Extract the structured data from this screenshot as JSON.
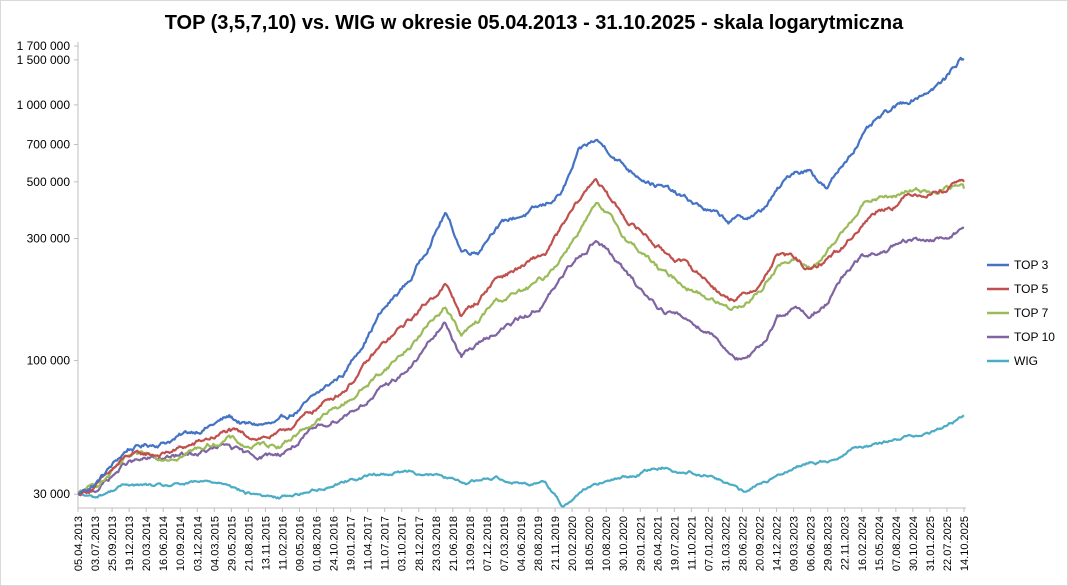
{
  "chart_data": {
    "type": "line",
    "title": "TOP (3,5,7,10) vs. WIG w okresie 05.04.2013 - 31.10.2025 - skala logarytmiczna",
    "xlabel": "",
    "ylabel": "",
    "y_scale": "log",
    "ylim": [
      26500,
      1700000
    ],
    "grid": false,
    "legend_position": "right",
    "y_ticks": [
      {
        "value": 30000,
        "label": "30 000"
      },
      {
        "value": 100000,
        "label": "100 000"
      },
      {
        "value": 300000,
        "label": "300 000"
      },
      {
        "value": 500000,
        "label": "500 000"
      },
      {
        "value": 700000,
        "label": "700 000"
      },
      {
        "value": 1000000,
        "label": "1 000 000"
      },
      {
        "value": 1500000,
        "label": "1 500 000"
      },
      {
        "value": 1700000,
        "label": "1 700 000"
      }
    ],
    "x_tick_labels": [
      "05.04.2013",
      "03.07.2013",
      "25.09.2013",
      "19.12.2013",
      "20.03.2014",
      "16.06.2014",
      "10.09.2014",
      "03.12.2014",
      "04.03.2015",
      "29.05.2015",
      "21.08.2015",
      "13.11.2015",
      "11.02.2016",
      "09.05.2016",
      "01.08.2016",
      "24.10.2016",
      "19.01.2017",
      "11.04.2017",
      "11.07.2017",
      "03.10.2017",
      "28.12.2017",
      "23.03.2018",
      "21.06.2018",
      "13.09.2018",
      "07.12.2018",
      "07.03.2019",
      "04.06.2019",
      "28.08.2019",
      "21.11.2019",
      "20.02.2020",
      "18.05.2020",
      "10.08.2020",
      "30.10.2020",
      "29.01.2021",
      "26.04.2021",
      "19.07.2021",
      "11.10.2021",
      "07.01.2022",
      "31.03.2022",
      "28.06.2022",
      "20.09.2022",
      "14.12.2022",
      "09.03.2023",
      "06.06.2023",
      "29.08.2023",
      "22.11.2023",
      "16.02.2024",
      "15.05.2024",
      "07.08.2024",
      "30.10.2024",
      "31.01.2025",
      "22.07.2025",
      "14.10.2025"
    ],
    "x": [
      "05.04.2013",
      "03.07.2013",
      "19.12.2013",
      "16.06.2014",
      "03.12.2014",
      "29.05.2015",
      "21.08.2015",
      "11.02.2016",
      "01.08.2016",
      "19.01.2017",
      "11.07.2017",
      "28.12.2017",
      "21.06.2018",
      "13.09.2018",
      "07.12.2018",
      "07.03.2019",
      "28.08.2019",
      "21.11.2019",
      "20.02.2020",
      "18.05.2020",
      "10.08.2020",
      "30.10.2020",
      "29.01.2021",
      "26.04.2021",
      "19.07.2021",
      "11.10.2021",
      "31.03.2022",
      "28.06.2022",
      "20.09.2022",
      "14.12.2022",
      "09.03.2023",
      "06.06.2023",
      "29.08.2023",
      "22.11.2023",
      "16.02.2024",
      "15.05.2024",
      "07.08.2024",
      "30.10.2024",
      "31.01.2025",
      "22.07.2025",
      "14.10.2025",
      "31.10.2025"
    ],
    "series": [
      {
        "name": "TOP 3",
        "color": "#4472c4",
        "values": [
          30000,
          33000,
          45000,
          48000,
          53000,
          60000,
          56000,
          56000,
          70000,
          90000,
          150000,
          210000,
          380000,
          270000,
          270000,
          340000,
          380000,
          400000,
          460000,
          650000,
          720000,
          650000,
          560000,
          520000,
          480000,
          440000,
          380000,
          350000,
          360000,
          380000,
          460000,
          550000,
          560000,
          470000,
          590000,
          750000,
          860000,
          950000,
          1050000,
          1250000,
          1530000,
          1500000
        ]
      },
      {
        "name": "TOP 5",
        "color": "#c0504d",
        "values": [
          30000,
          32000,
          42000,
          43000,
          47000,
          53000,
          50000,
          51000,
          63000,
          78000,
          110000,
          145000,
          200000,
          150000,
          170000,
          210000,
          240000,
          260000,
          330000,
          420000,
          520000,
          420000,
          350000,
          310000,
          270000,
          250000,
          200000,
          175000,
          180000,
          200000,
          260000,
          250000,
          220000,
          250000,
          280000,
          340000,
          390000,
          410000,
          450000,
          470000,
          520000,
          500000
        ]
      },
      {
        "name": "TOP 7",
        "color": "#9bbb59",
        "values": [
          30000,
          32000,
          41000,
          42000,
          45000,
          50000,
          46000,
          47000,
          57000,
          68000,
          88000,
          115000,
          165000,
          125000,
          140000,
          170000,
          190000,
          210000,
          260000,
          330000,
          400000,
          350000,
          290000,
          260000,
          220000,
          205000,
          175000,
          160000,
          170000,
          190000,
          240000,
          245000,
          230000,
          260000,
          320000,
          410000,
          430000,
          440000,
          460000,
          470000,
          480000,
          470000
        ]
      },
      {
        "name": "TOP 10",
        "color": "#8064a2",
        "values": [
          30000,
          31000,
          40000,
          41000,
          43000,
          46000,
          42000,
          43000,
          52000,
          62000,
          75000,
          95000,
          140000,
          105000,
          115000,
          130000,
          150000,
          170000,
          210000,
          260000,
          300000,
          260000,
          210000,
          180000,
          160000,
          150000,
          130000,
          110000,
          100000,
          110000,
          150000,
          160000,
          150000,
          170000,
          210000,
          250000,
          260000,
          275000,
          290000,
          300000,
          330000,
          330000
        ]
      },
      {
        "name": "WIG",
        "color": "#4bacc6",
        "values": [
          30000,
          29000,
          33000,
          32000,
          33000,
          33500,
          30500,
          29000,
          31000,
          34000,
          36000,
          37000,
          35000,
          33000,
          34000,
          35000,
          33000,
          34000,
          27000,
          31000,
          33500,
          34000,
          35000,
          37000,
          38500,
          37000,
          36000,
          33000,
          30000,
          33500,
          35000,
          39000,
          40000,
          40500,
          44000,
          47000,
          47500,
          49000,
          51000,
          55000,
          60000,
          61000
        ]
      }
    ]
  }
}
